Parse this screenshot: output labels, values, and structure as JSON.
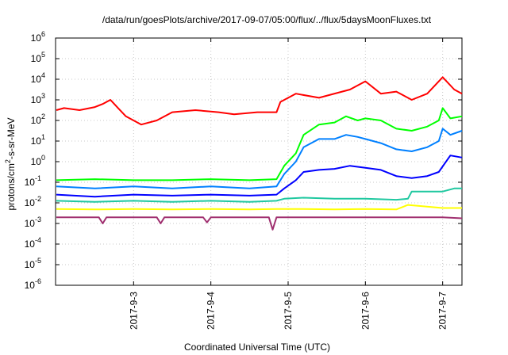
{
  "chart_data": {
    "type": "line",
    "title": "/data/run/goesPlots/archive/2017-09-07/05:00/flux/../flux/5daysMoonFluxes.txt",
    "xlabel": "Coordinated Universal Time (UTC)",
    "ylabel": "protons/cm2-s-sr-MeV",
    "ylabel_parts": {
      "a": "protons/cm",
      "sup": "2",
      "b": "-s-sr-MeV"
    },
    "yscale": "log",
    "ylim": [
      -6,
      6
    ],
    "yticks": [
      -6,
      -5,
      -4,
      -3,
      -2,
      -1,
      0,
      1,
      2,
      3,
      4,
      5,
      6
    ],
    "xlim": [
      1.99,
      7.25
    ],
    "xticks": [
      {
        "v": 3,
        "label": "2017-9-3"
      },
      {
        "v": 4,
        "label": "2017-9-4"
      },
      {
        "v": 5,
        "label": "2017-9-5"
      },
      {
        "v": 6,
        "label": "2017-9-6"
      },
      {
        "v": 7,
        "label": "2017-9-7"
      }
    ],
    "grid": true,
    "series": [
      {
        "color": "#ff0000",
        "values": [
          [
            2.0,
            2.5
          ],
          [
            2.1,
            2.6
          ],
          [
            2.3,
            2.5
          ],
          [
            2.5,
            2.65
          ],
          [
            2.6,
            2.8
          ],
          [
            2.7,
            3.0
          ],
          [
            2.8,
            2.6
          ],
          [
            2.9,
            2.2
          ],
          [
            3.1,
            1.8
          ],
          [
            3.3,
            2.0
          ],
          [
            3.5,
            2.4
          ],
          [
            3.8,
            2.5
          ],
          [
            4.1,
            2.4
          ],
          [
            4.3,
            2.3
          ],
          [
            4.6,
            2.4
          ],
          [
            4.85,
            2.4
          ],
          [
            4.9,
            2.9
          ],
          [
            5.1,
            3.3
          ],
          [
            5.4,
            3.1
          ],
          [
            5.8,
            3.5
          ],
          [
            6.0,
            3.9
          ],
          [
            6.2,
            3.3
          ],
          [
            6.4,
            3.4
          ],
          [
            6.6,
            3.0
          ],
          [
            6.8,
            3.3
          ],
          [
            7.0,
            4.1
          ],
          [
            7.15,
            3.5
          ],
          [
            7.25,
            3.3
          ]
        ]
      },
      {
        "color": "#00ff00",
        "values": [
          [
            2.0,
            -0.9
          ],
          [
            2.5,
            -0.85
          ],
          [
            3.0,
            -0.9
          ],
          [
            3.5,
            -0.9
          ],
          [
            4.0,
            -0.85
          ],
          [
            4.5,
            -0.9
          ],
          [
            4.85,
            -0.85
          ],
          [
            4.95,
            -0.2
          ],
          [
            5.1,
            0.4
          ],
          [
            5.2,
            1.3
          ],
          [
            5.4,
            1.8
          ],
          [
            5.6,
            1.9
          ],
          [
            5.75,
            2.2
          ],
          [
            5.9,
            2.0
          ],
          [
            6.0,
            2.1
          ],
          [
            6.2,
            2.0
          ],
          [
            6.4,
            1.6
          ],
          [
            6.6,
            1.5
          ],
          [
            6.8,
            1.7
          ],
          [
            6.95,
            2.0
          ],
          [
            7.0,
            2.6
          ],
          [
            7.1,
            2.1
          ],
          [
            7.25,
            2.2
          ]
        ]
      },
      {
        "color": "#0080ff",
        "values": [
          [
            2.0,
            -1.2
          ],
          [
            2.5,
            -1.3
          ],
          [
            3.0,
            -1.2
          ],
          [
            3.5,
            -1.3
          ],
          [
            4.0,
            -1.2
          ],
          [
            4.5,
            -1.3
          ],
          [
            4.85,
            -1.2
          ],
          [
            4.95,
            -0.6
          ],
          [
            5.1,
            0.0
          ],
          [
            5.2,
            0.7
          ],
          [
            5.4,
            1.1
          ],
          [
            5.6,
            1.1
          ],
          [
            5.75,
            1.3
          ],
          [
            5.9,
            1.2
          ],
          [
            6.0,
            1.1
          ],
          [
            6.2,
            0.9
          ],
          [
            6.4,
            0.6
          ],
          [
            6.6,
            0.5
          ],
          [
            6.8,
            0.7
          ],
          [
            6.95,
            1.0
          ],
          [
            7.0,
            1.6
          ],
          [
            7.1,
            1.3
          ],
          [
            7.25,
            1.5
          ]
        ]
      },
      {
        "color": "#0000ff",
        "values": [
          [
            2.0,
            -1.6
          ],
          [
            2.5,
            -1.7
          ],
          [
            3.0,
            -1.6
          ],
          [
            3.5,
            -1.65
          ],
          [
            4.0,
            -1.6
          ],
          [
            4.5,
            -1.65
          ],
          [
            4.85,
            -1.6
          ],
          [
            4.95,
            -1.3
          ],
          [
            5.1,
            -0.9
          ],
          [
            5.2,
            -0.5
          ],
          [
            5.4,
            -0.4
          ],
          [
            5.6,
            -0.35
          ],
          [
            5.8,
            -0.2
          ],
          [
            6.0,
            -0.3
          ],
          [
            6.2,
            -0.4
          ],
          [
            6.4,
            -0.7
          ],
          [
            6.6,
            -0.8
          ],
          [
            6.8,
            -0.7
          ],
          [
            6.95,
            -0.5
          ],
          [
            7.1,
            0.3
          ],
          [
            7.25,
            0.2
          ]
        ]
      },
      {
        "color": "#20c8a0",
        "values": [
          [
            2.0,
            -1.9
          ],
          [
            2.5,
            -1.95
          ],
          [
            3.0,
            -1.9
          ],
          [
            3.5,
            -1.95
          ],
          [
            4.0,
            -1.9
          ],
          [
            4.5,
            -1.95
          ],
          [
            4.85,
            -1.9
          ],
          [
            4.95,
            -1.8
          ],
          [
            5.2,
            -1.75
          ],
          [
            5.6,
            -1.8
          ],
          [
            6.0,
            -1.8
          ],
          [
            6.4,
            -1.85
          ],
          [
            6.55,
            -1.8
          ],
          [
            6.6,
            -1.45
          ],
          [
            7.0,
            -1.45
          ],
          [
            7.15,
            -1.3
          ],
          [
            7.25,
            -1.3
          ]
        ]
      },
      {
        "color": "#ffff00",
        "values": [
          [
            2.0,
            -2.3
          ],
          [
            2.5,
            -2.32
          ],
          [
            3.0,
            -2.3
          ],
          [
            3.5,
            -2.32
          ],
          [
            4.0,
            -2.3
          ],
          [
            4.5,
            -2.32
          ],
          [
            4.85,
            -2.3
          ],
          [
            5.2,
            -2.3
          ],
          [
            5.6,
            -2.32
          ],
          [
            6.0,
            -2.3
          ],
          [
            6.4,
            -2.32
          ],
          [
            6.55,
            -2.1
          ],
          [
            7.0,
            -2.25
          ],
          [
            7.25,
            -2.25
          ]
        ]
      },
      {
        "color": "#a03070",
        "values": [
          [
            2.0,
            -2.7
          ],
          [
            2.55,
            -2.7
          ],
          [
            2.6,
            -3.0
          ],
          [
            2.65,
            -2.7
          ],
          [
            3.3,
            -2.7
          ],
          [
            3.35,
            -3.0
          ],
          [
            3.4,
            -2.7
          ],
          [
            3.9,
            -2.7
          ],
          [
            3.95,
            -2.95
          ],
          [
            4.0,
            -2.7
          ],
          [
            4.75,
            -2.7
          ],
          [
            4.8,
            -3.3
          ],
          [
            4.85,
            -2.7
          ],
          [
            5.5,
            -2.7
          ],
          [
            6.0,
            -2.7
          ],
          [
            6.5,
            -2.7
          ],
          [
            7.0,
            -2.7
          ],
          [
            7.25,
            -2.75
          ]
        ]
      }
    ]
  }
}
